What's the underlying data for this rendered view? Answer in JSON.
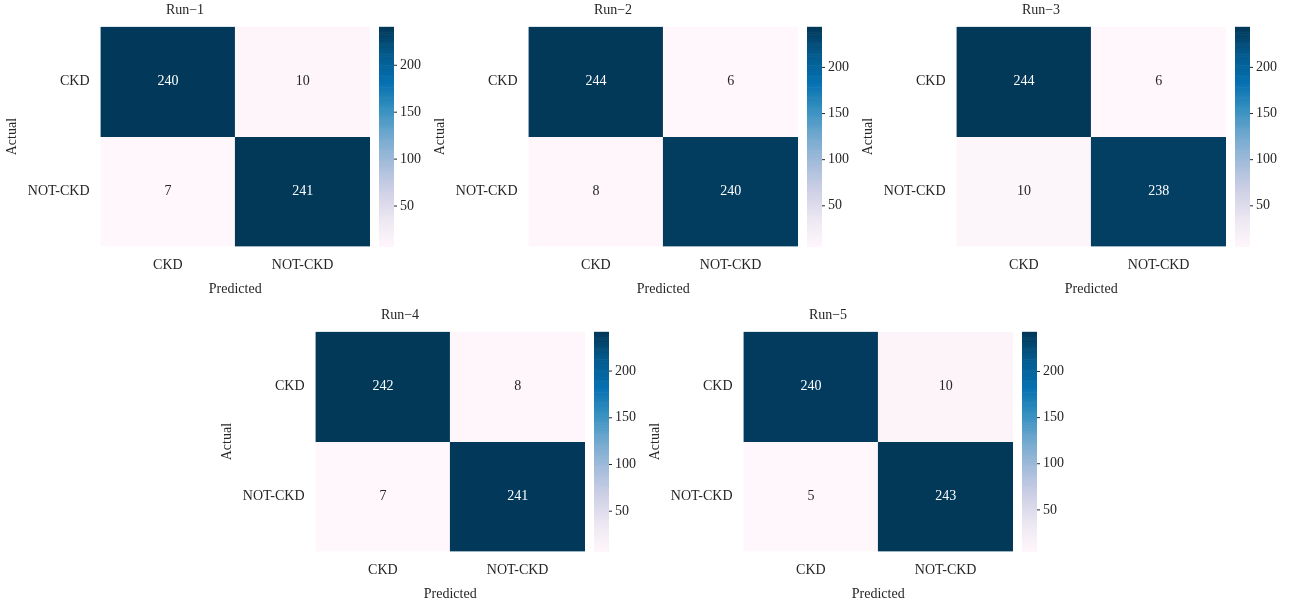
{
  "chart_data": [
    {
      "type": "heatmap",
      "title": "Run−1",
      "xlabel": "Predicted",
      "ylabel": "Actual",
      "categories": [
        "CKD",
        "NOT-CKD"
      ],
      "y_categories": [
        "CKD",
        "NOT-CKD"
      ],
      "cells": [
        [
          240,
          10
        ],
        [
          7,
          241
        ]
      ],
      "data_labels": true,
      "clim": [
        7,
        241
      ],
      "cticks": [
        50,
        100,
        150,
        200
      ]
    },
    {
      "type": "heatmap",
      "title": "Run−2",
      "xlabel": "Predicted",
      "ylabel": "Actual",
      "categories": [
        "CKD",
        "NOT-CKD"
      ],
      "y_categories": [
        "CKD",
        "NOT-CKD"
      ],
      "cells": [
        [
          244,
          6
        ],
        [
          8,
          240
        ]
      ],
      "data_labels": true,
      "clim": [
        6,
        244
      ],
      "cticks": [
        50,
        100,
        150,
        200
      ]
    },
    {
      "type": "heatmap",
      "title": "Run−3",
      "xlabel": "Predicted",
      "ylabel": "Actual",
      "categories": [
        "CKD",
        "NOT-CKD"
      ],
      "y_categories": [
        "CKD",
        "NOT-CKD"
      ],
      "cells": [
        [
          244,
          6
        ],
        [
          10,
          238
        ]
      ],
      "data_labels": true,
      "clim": [
        6,
        244
      ],
      "cticks": [
        50,
        100,
        150,
        200
      ]
    },
    {
      "type": "heatmap",
      "title": "Run−4",
      "xlabel": "Predicted",
      "ylabel": "Actual",
      "categories": [
        "CKD",
        "NOT-CKD"
      ],
      "y_categories": [
        "CKD",
        "NOT-CKD"
      ],
      "cells": [
        [
          242,
          8
        ],
        [
          7,
          241
        ]
      ],
      "data_labels": true,
      "clim": [
        7,
        242
      ],
      "cticks": [
        50,
        100,
        150,
        200
      ]
    },
    {
      "type": "heatmap",
      "title": "Run−5",
      "xlabel": "Predicted",
      "ylabel": "Actual",
      "categories": [
        "CKD",
        "NOT-CKD"
      ],
      "y_categories": [
        "CKD",
        "NOT-CKD"
      ],
      "cells": [
        [
          240,
          10
        ],
        [
          5,
          243
        ]
      ],
      "data_labels": true,
      "clim": [
        5,
        243
      ],
      "cticks": [
        50,
        100,
        150,
        200
      ]
    }
  ]
}
